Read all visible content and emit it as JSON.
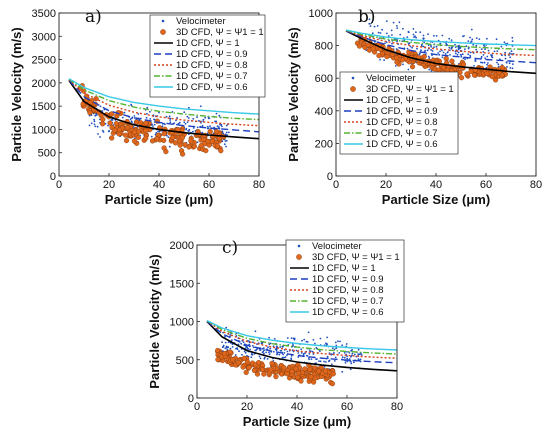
{
  "chart_data": [
    {
      "type": "line",
      "panel_label": "a)",
      "xlabel": "Particle Size (μm)",
      "ylabel": "Particle Velocity (m/s)",
      "xlim": [
        0,
        80
      ],
      "ylim": [
        0,
        3500
      ],
      "xticks": [
        0,
        20,
        40,
        60,
        80
      ],
      "yticks": [
        0,
        500,
        1000,
        1500,
        2000,
        2500,
        3000,
        3500
      ],
      "grid": false,
      "legend_position": "top-right",
      "scatter": [
        {
          "name": "Velocimeter",
          "color": "#1f4fbf",
          "marker": "dot",
          "x_range": [
            12,
            68
          ],
          "y_center": [
            1250,
            1150,
            1080,
            1000,
            950
          ],
          "spread": 180
        },
        {
          "name": "3D CFD, Ψ = Ψ1 = 1",
          "color": "#e0661b",
          "marker": "circle",
          "x_range": [
            8,
            66
          ],
          "y_center": [
            1750,
            1050,
            900,
            800,
            720
          ],
          "spread": 130
        }
      ],
      "series": [
        {
          "name": "1D CFD, Ψ = 1",
          "color": "#000000",
          "dash": "",
          "x": [
            4,
            10,
            20,
            30,
            40,
            50,
            60,
            70,
            80
          ],
          "y": [
            2050,
            1600,
            1270,
            1100,
            1000,
            930,
            880,
            840,
            800
          ]
        },
        {
          "name": "1D CFD, Ψ = 0.9",
          "color": "#1f3fbf",
          "dash": "7,4",
          "x": [
            4,
            10,
            20,
            30,
            40,
            50,
            60,
            70,
            80
          ],
          "y": [
            2060,
            1700,
            1400,
            1250,
            1150,
            1080,
            1030,
            990,
            950
          ]
        },
        {
          "name": "1D CFD, Ψ = 0.8",
          "color": "#d9441c",
          "dash": "2,2",
          "x": [
            4,
            10,
            20,
            30,
            40,
            50,
            60,
            70,
            80
          ],
          "y": [
            2070,
            1780,
            1520,
            1370,
            1270,
            1200,
            1150,
            1110,
            1080
          ]
        },
        {
          "name": "1D CFD, Ψ = 0.7",
          "color": "#55b431",
          "dash": "6,2,1.5,2",
          "x": [
            4,
            10,
            20,
            30,
            40,
            50,
            60,
            70,
            80
          ],
          "y": [
            2080,
            1850,
            1620,
            1480,
            1390,
            1330,
            1280,
            1240,
            1210
          ]
        },
        {
          "name": "1D CFD, Ψ = 0.6",
          "color": "#38c9e8",
          "dash": "",
          "x": [
            4,
            10,
            20,
            30,
            40,
            50,
            60,
            70,
            80
          ],
          "y": [
            2090,
            1900,
            1700,
            1580,
            1500,
            1440,
            1400,
            1360,
            1330
          ]
        }
      ]
    },
    {
      "type": "line",
      "panel_label": "b)",
      "xlabel": "Particle Size (μm)",
      "ylabel": "Particle Velocity (m/s)",
      "xlim": [
        0,
        80
      ],
      "ylim": [
        0,
        1000
      ],
      "xticks": [
        0,
        20,
        40,
        60,
        80
      ],
      "yticks": [
        0,
        200,
        400,
        600,
        800,
        1000
      ],
      "grid": false,
      "legend_position": "bottom-left",
      "scatter": [
        {
          "name": "Velocimeter",
          "color": "#1f4fbf",
          "marker": "dot",
          "x_range": [
            12,
            72
          ],
          "y_center": [
            840,
            800,
            770,
            750,
            730
          ],
          "spread": 55
        },
        {
          "name": "3D CFD, Ψ = Ψ1 = 1",
          "color": "#e0661b",
          "marker": "circle",
          "x_range": [
            8,
            68
          ],
          "y_center": [
            830,
            740,
            690,
            650,
            620
          ],
          "spread": 18
        }
      ],
      "series": [
        {
          "name": "1D CFD, Ψ = 1",
          "color": "#000000",
          "dash": "",
          "x": [
            4,
            10,
            20,
            30,
            40,
            50,
            60,
            70,
            80
          ],
          "y": [
            890,
            845,
            775,
            725,
            690,
            670,
            655,
            640,
            630
          ]
        },
        {
          "name": "1D CFD, Ψ = 0.9",
          "color": "#1f3fbf",
          "dash": "7,4",
          "x": [
            4,
            10,
            20,
            30,
            40,
            50,
            60,
            70,
            80
          ],
          "y": [
            890,
            855,
            805,
            770,
            745,
            730,
            715,
            705,
            695
          ]
        },
        {
          "name": "1D CFD, Ψ = 0.8",
          "color": "#d9441c",
          "dash": "2,2",
          "x": [
            4,
            10,
            20,
            30,
            40,
            50,
            60,
            70,
            80
          ],
          "y": [
            892,
            862,
            825,
            800,
            780,
            765,
            755,
            745,
            740
          ]
        },
        {
          "name": "1D CFD, Ψ = 0.7",
          "color": "#55b431",
          "dash": "6,2,1.5,2",
          "x": [
            4,
            10,
            20,
            30,
            40,
            50,
            60,
            70,
            80
          ],
          "y": [
            894,
            870,
            840,
            820,
            805,
            795,
            787,
            780,
            775
          ]
        },
        {
          "name": "1D CFD, Ψ = 0.6",
          "color": "#38c9e8",
          "dash": "",
          "x": [
            4,
            10,
            20,
            30,
            40,
            50,
            60,
            70,
            80
          ],
          "y": [
            896,
            876,
            852,
            836,
            825,
            817,
            810,
            805,
            800
          ]
        }
      ]
    },
    {
      "type": "line",
      "panel_label": "c)",
      "xlabel": "Particle Size (μm)",
      "ylabel": "Particle Velocity (m/s)",
      "xlim": [
        0,
        80
      ],
      "ylim": [
        0,
        2000
      ],
      "xticks": [
        0,
        20,
        40,
        60,
        80
      ],
      "yticks": [
        0,
        500,
        1000,
        1500,
        2000
      ],
      "grid": false,
      "legend_position": "top-right",
      "scatter": [
        {
          "name": "Velocimeter",
          "color": "#1f4fbf",
          "marker": "dot",
          "x_range": [
            10,
            66
          ],
          "y_center": [
            720,
            640,
            600,
            570,
            550
          ],
          "spread": 90
        },
        {
          "name": "3D CFD, Ψ = Ψ1 = 1",
          "color": "#e0661b",
          "marker": "circle",
          "x_range": [
            8,
            55
          ],
          "y_center": [
            600,
            420,
            360,
            320,
            300
          ],
          "spread": 45
        }
      ],
      "series": [
        {
          "name": "1D CFD, Ψ = 1",
          "color": "#000000",
          "dash": "",
          "x": [
            4,
            10,
            20,
            30,
            40,
            50,
            60,
            70,
            80
          ],
          "y": [
            1000,
            800,
            620,
            530,
            470,
            430,
            400,
            375,
            355
          ]
        },
        {
          "name": "1D CFD, Ψ = 0.9",
          "color": "#1f3fbf",
          "dash": "7,4",
          "x": [
            4,
            10,
            20,
            30,
            40,
            50,
            60,
            70,
            80
          ],
          "y": [
            1005,
            840,
            690,
            610,
            555,
            520,
            495,
            475,
            460
          ]
        },
        {
          "name": "1D CFD, Ψ = 0.8",
          "color": "#d9441c",
          "dash": "2,2",
          "x": [
            4,
            10,
            20,
            30,
            40,
            50,
            60,
            70,
            80
          ],
          "y": [
            1008,
            870,
            740,
            665,
            615,
            580,
            555,
            535,
            520
          ]
        },
        {
          "name": "1D CFD, Ψ = 0.7",
          "color": "#55b431",
          "dash": "6,2,1.5,2",
          "x": [
            4,
            10,
            20,
            30,
            40,
            50,
            60,
            70,
            80
          ],
          "y": [
            1010,
            895,
            780,
            710,
            665,
            632,
            608,
            590,
            575
          ]
        },
        {
          "name": "1D CFD, Ψ = 0.6",
          "color": "#38c9e8",
          "dash": "",
          "x": [
            4,
            10,
            20,
            30,
            40,
            50,
            60,
            70,
            80
          ],
          "y": [
            1012,
            915,
            815,
            755,
            712,
            682,
            660,
            642,
            628
          ]
        }
      ]
    }
  ]
}
